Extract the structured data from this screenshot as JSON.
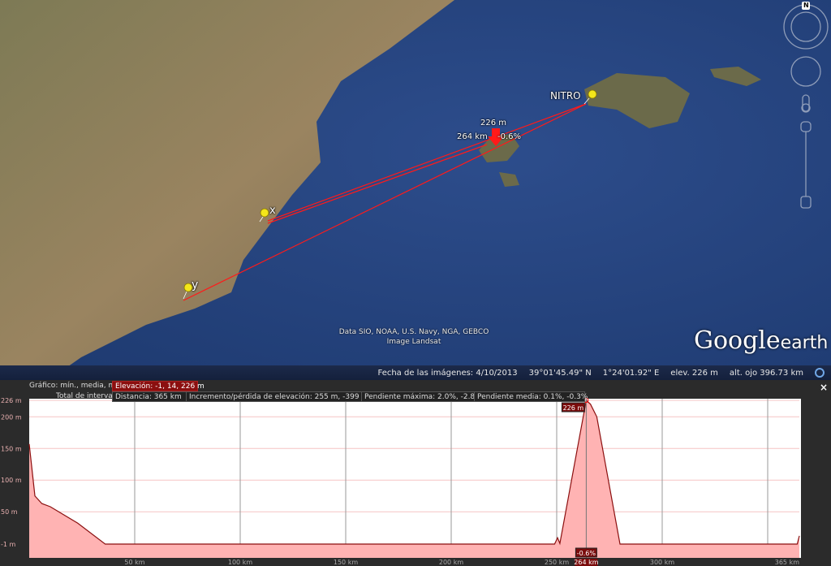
{
  "map": {
    "placemarks": [
      {
        "label": "NITRO"
      },
      {
        "label": "x"
      },
      {
        "label": "y"
      }
    ],
    "cursor": {
      "elevation": "226 m",
      "distance": "264 km",
      "slope": "-0.6%"
    },
    "credits": [
      "Data SIO, NOAA, U.S. Navy, NGA, GEBCO",
      "Image Landsat"
    ],
    "logo": "Google earth",
    "compass_label": "N",
    "route_color": "#ff1a1a"
  },
  "status": {
    "image_date": "Fecha de las imágenes: 4/10/2013",
    "lat": "39°01'45.49\" N",
    "lon": "1°24'01.92\" E",
    "elev_label": "elev.",
    "elev": "226 m",
    "eye_alt": "alt. ojo 396.73 km"
  },
  "profile": {
    "graph_label": "Gráfico: mín., media, máx:",
    "elevation_stat": "Elevación: -1, 14, 226 m",
    "total_label": "Total de intervalo:",
    "distance": "Distancia: 365 km",
    "gain_loss": "Incremento/pérdida de elevación: 255 m, -399 m",
    "max_slope": "Pendiente máxima: 2.0%, -2.8%",
    "avg_slope": "Pendiente media: 0.1%, -0.3%",
    "close": "×"
  },
  "chart_data": {
    "type": "area",
    "xlim": [
      0,
      365
    ],
    "ylim": [
      -1,
      226
    ],
    "x_ticks": [
      {
        "v": 50,
        "label": "50 km"
      },
      {
        "v": 100,
        "label": "100 km"
      },
      {
        "v": 150,
        "label": "150 km"
      },
      {
        "v": 200,
        "label": "200 km"
      },
      {
        "v": 250,
        "label": "250 km"
      },
      {
        "v": 300,
        "label": "300 km"
      },
      {
        "v": 365,
        "label": "365 km"
      }
    ],
    "y_ticks": [
      {
        "v": 226,
        "label": "226 m"
      },
      {
        "v": 200,
        "label": "200 m"
      },
      {
        "v": 150,
        "label": "150 m"
      },
      {
        "v": 100,
        "label": "100 m"
      },
      {
        "v": 50,
        "label": "50 m"
      },
      {
        "v": -1,
        "label": "-1 m"
      }
    ],
    "grid": true,
    "points": [
      [
        0,
        157
      ],
      [
        2.7,
        75
      ],
      [
        6,
        63
      ],
      [
        10,
        58
      ],
      [
        23,
        32
      ],
      [
        36,
        -1
      ],
      [
        249,
        -1
      ],
      [
        250.4,
        9
      ],
      [
        251.5,
        0
      ],
      [
        264,
        226
      ],
      [
        266,
        220
      ],
      [
        269,
        200
      ],
      [
        280,
        -1
      ],
      [
        364,
        -1
      ],
      [
        365,
        12
      ]
    ],
    "cursor": {
      "x": 264,
      "label_x": "264 km",
      "label_y": "226 m",
      "label_slope": "-0.6%"
    },
    "line_color": "#8b0f0f",
    "fill_color": "#ffb3b3"
  }
}
